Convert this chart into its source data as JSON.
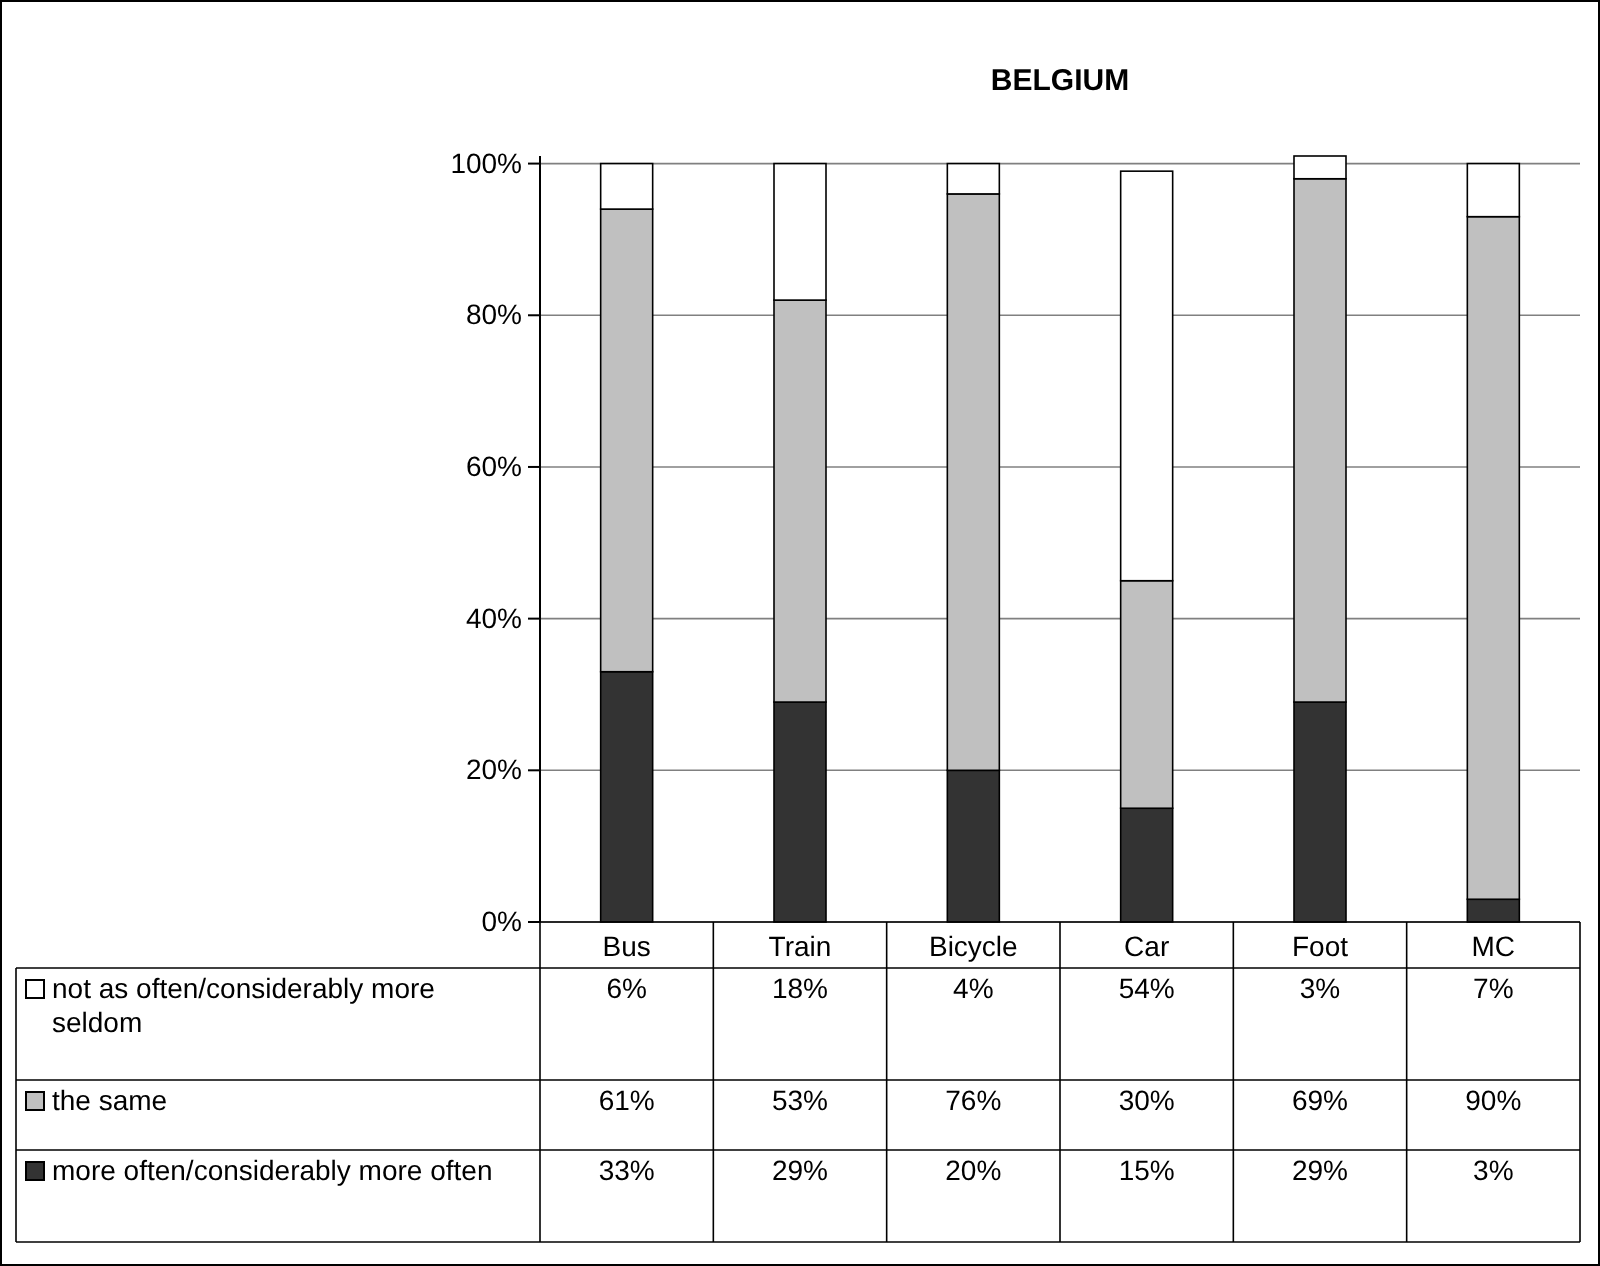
{
  "chart_data": {
    "type": "bar",
    "title": "BELGIUM",
    "stacked": true,
    "categories": [
      "Bus",
      "Train",
      "Bicycle",
      "Car",
      "Foot",
      "MC"
    ],
    "series": [
      {
        "name": "more often/considerably more often",
        "color": "#333333",
        "values": [
          33,
          29,
          20,
          15,
          29,
          3
        ],
        "value_labels": [
          "33%",
          "29%",
          "20%",
          "15%",
          "29%",
          "3%"
        ]
      },
      {
        "name": "the same",
        "color": "#c0c0c0",
        "values": [
          61,
          53,
          76,
          30,
          69,
          90
        ],
        "value_labels": [
          "61%",
          "53%",
          "76%",
          "30%",
          "69%",
          "90%"
        ]
      },
      {
        "name": "not as often/considerably more seldom",
        "color": "#ffffff",
        "values": [
          6,
          18,
          4,
          54,
          3,
          7
        ],
        "value_labels": [
          "6%",
          "18%",
          "4%",
          "54%",
          "3%",
          "7%"
        ]
      }
    ],
    "ylim": [
      0,
      101
    ],
    "yticks": [
      {
        "value": 0,
        "label": "0%"
      },
      {
        "value": 20,
        "label": "20%"
      },
      {
        "value": 40,
        "label": "40%"
      },
      {
        "value": 60,
        "label": "60%"
      },
      {
        "value": 80,
        "label": "80%"
      },
      {
        "value": 100,
        "label": "100%"
      }
    ],
    "grid": "y",
    "legend": "bottom left"
  }
}
